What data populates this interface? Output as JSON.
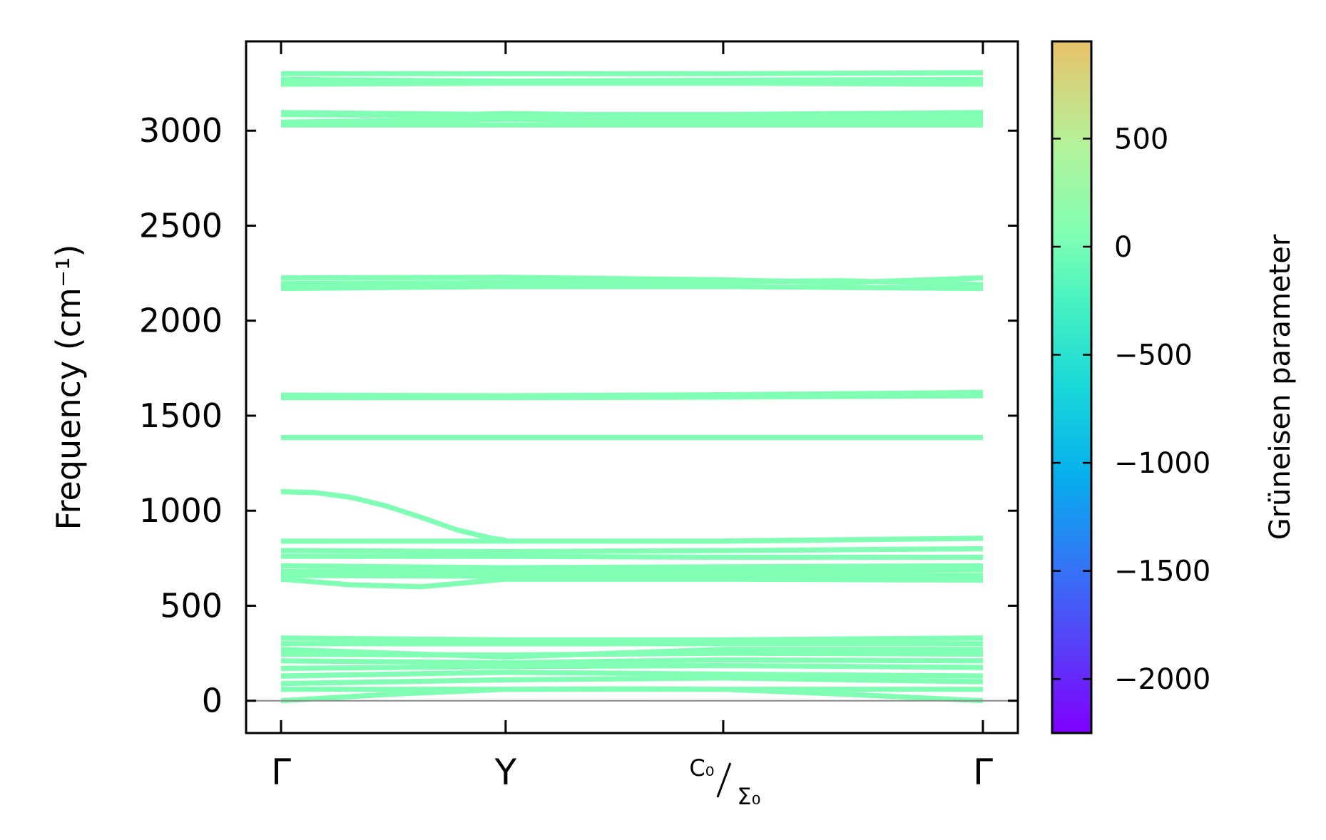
{
  "chart_data": {
    "type": "line",
    "title": "",
    "xlabel": "",
    "ylabel": "Frequency (cm⁻¹)",
    "ylim": [
      -170,
      3470
    ],
    "yticks": [
      "0",
      "500",
      "1000",
      "1500",
      "2000",
      "2500",
      "3000"
    ],
    "ytick_values": [
      0,
      500,
      1000,
      1500,
      2000,
      2500,
      3000
    ],
    "x_ticks": [
      {
        "label": "Γ",
        "pos": 0.0
      },
      {
        "label": "Y",
        "pos": 0.32
      },
      {
        "label_top": "C₀",
        "label_bottom": "Σ₀",
        "pos": 0.63
      },
      {
        "label": "Γ",
        "pos": 1.0
      }
    ],
    "band_color": "#80ffb4",
    "zero_line_color": "#888888",
    "band_groups": [
      {
        "name": "acoustic-low",
        "x": [
          0,
          0.16,
          0.32,
          0.5,
          0.63,
          0.8,
          1.0
        ],
        "y": [
          0,
          35,
          60,
          62,
          60,
          35,
          0
        ]
      },
      {
        "name": "low-group-1",
        "x": [
          0,
          0.32,
          0.63,
          1.0
        ],
        "y": [
          60,
          60,
          60,
          60
        ]
      },
      {
        "name": "low-group-2",
        "x": [
          0,
          0.32,
          0.63,
          1.0
        ],
        "y": [
          90,
          110,
          120,
          100
        ]
      },
      {
        "name": "low-group-3",
        "x": [
          0,
          0.32,
          0.63,
          1.0
        ],
        "y": [
          130,
          150,
          140,
          130
        ]
      },
      {
        "name": "low-group-4",
        "x": [
          0,
          0.32,
          0.63,
          1.0
        ],
        "y": [
          170,
          180,
          185,
          175
        ]
      },
      {
        "name": "low-group-5",
        "x": [
          0,
          0.32,
          0.63,
          1.0
        ],
        "y": [
          210,
          200,
          215,
          210
        ]
      },
      {
        "name": "low-group-6",
        "x": [
          0,
          0.32,
          0.63,
          1.0
        ],
        "y": [
          245,
          240,
          250,
          245
        ]
      },
      {
        "name": "low-group-7",
        "x": [
          0,
          0.32,
          0.63,
          1.0
        ],
        "y": [
          270,
          230,
          270,
          270
        ]
      },
      {
        "name": "low-group-8",
        "x": [
          0,
          0.32,
          0.63,
          1.0
        ],
        "y": [
          300,
          300,
          300,
          300
        ]
      },
      {
        "name": "low-group-9",
        "x": [
          0,
          0.32,
          0.63,
          1.0
        ],
        "y": [
          330,
          320,
          320,
          330
        ]
      },
      {
        "name": "mid-600",
        "x": [
          0,
          0.1,
          0.2,
          0.32,
          0.63,
          1.0
        ],
        "y": [
          640,
          610,
          600,
          640,
          640,
          635
        ]
      },
      {
        "name": "mid-650",
        "x": [
          0,
          0.32,
          0.63,
          1.0
        ],
        "y": [
          660,
          655,
          660,
          660
        ]
      },
      {
        "name": "mid-680",
        "x": [
          0,
          0.32,
          0.63,
          1.0
        ],
        "y": [
          680,
          680,
          680,
          690
        ]
      },
      {
        "name": "mid-710",
        "x": [
          0,
          0.32,
          0.63,
          1.0
        ],
        "y": [
          710,
          700,
          705,
          710
        ]
      },
      {
        "name": "mid-760",
        "x": [
          0,
          0.32,
          0.63,
          1.0
        ],
        "y": [
          760,
          760,
          755,
          755
        ]
      },
      {
        "name": "mid-790",
        "x": [
          0,
          0.32,
          0.63,
          1.0
        ],
        "y": [
          790,
          785,
          790,
          800
        ]
      },
      {
        "name": "mid-840",
        "x": [
          0,
          0.32,
          0.63,
          1.0
        ],
        "y": [
          840,
          840,
          840,
          855
        ]
      },
      {
        "name": "dispersive-1100",
        "x": [
          0,
          0.05,
          0.1,
          0.15,
          0.2,
          0.25,
          0.3,
          0.32
        ],
        "y": [
          1100,
          1095,
          1070,
          1025,
          965,
          900,
          855,
          845
        ]
      },
      {
        "name": "band-1385",
        "x": [
          0,
          0.32,
          0.63,
          1.0
        ],
        "y": [
          1385,
          1385,
          1385,
          1385
        ]
      },
      {
        "name": "band-1595",
        "x": [
          0,
          0.32,
          0.63,
          1.0
        ],
        "y": [
          1595,
          1595,
          1598,
          1605
        ]
      },
      {
        "name": "band-1610",
        "x": [
          0,
          0.32,
          0.63,
          1.0
        ],
        "y": [
          1608,
          1605,
          1610,
          1622
        ]
      },
      {
        "name": "band-2170",
        "x": [
          0,
          0.32,
          0.63,
          0.8,
          1.0
        ],
        "y": [
          2170,
          2180,
          2180,
          2175,
          2170
        ]
      },
      {
        "name": "band-2195",
        "x": [
          0,
          0.32,
          0.63,
          0.8,
          1.0
        ],
        "y": [
          2195,
          2200,
          2205,
          2210,
          2190
        ]
      },
      {
        "name": "band-2225",
        "x": [
          0,
          0.32,
          0.63,
          0.8,
          1.0
        ],
        "y": [
          2225,
          2228,
          2215,
          2200,
          2225
        ]
      },
      {
        "name": "band-3030",
        "x": [
          0,
          0.32,
          0.63,
          1.0
        ],
        "y": [
          3030,
          3030,
          3030,
          3030
        ]
      },
      {
        "name": "band-3050",
        "x": [
          0,
          0.32,
          0.63,
          0.8,
          1.0
        ],
        "y": [
          3045,
          3060,
          3050,
          3040,
          3055
        ]
      },
      {
        "name": "band-3075",
        "x": [
          0,
          0.2,
          0.32,
          0.63,
          0.8,
          1.0
        ],
        "y": [
          3085,
          3080,
          3090,
          3075,
          3065,
          3080
        ]
      },
      {
        "name": "band-3095",
        "x": [
          0,
          0.32,
          0.63,
          1.0
        ],
        "y": [
          3095,
          3085,
          3085,
          3095
        ]
      },
      {
        "name": "band-3250",
        "x": [
          0,
          0.32,
          0.63,
          1.0
        ],
        "y": [
          3245,
          3250,
          3250,
          3245
        ]
      },
      {
        "name": "band-3270",
        "x": [
          0,
          0.32,
          0.63,
          1.0
        ],
        "y": [
          3270,
          3260,
          3265,
          3270
        ]
      },
      {
        "name": "band-3300",
        "x": [
          0,
          0.32,
          0.63,
          1.0
        ],
        "y": [
          3300,
          3300,
          3300,
          3305
        ]
      }
    ],
    "colorbar": {
      "label": "Grüneisen parameter",
      "range": [
        -2250,
        950
      ],
      "ticks": [
        500,
        0,
        -500,
        -1000,
        -1500,
        -2000
      ],
      "tick_labels": [
        "500",
        "0",
        "−500",
        "−1000",
        "−1500",
        "−2000"
      ],
      "colormap": "rainbow"
    }
  }
}
